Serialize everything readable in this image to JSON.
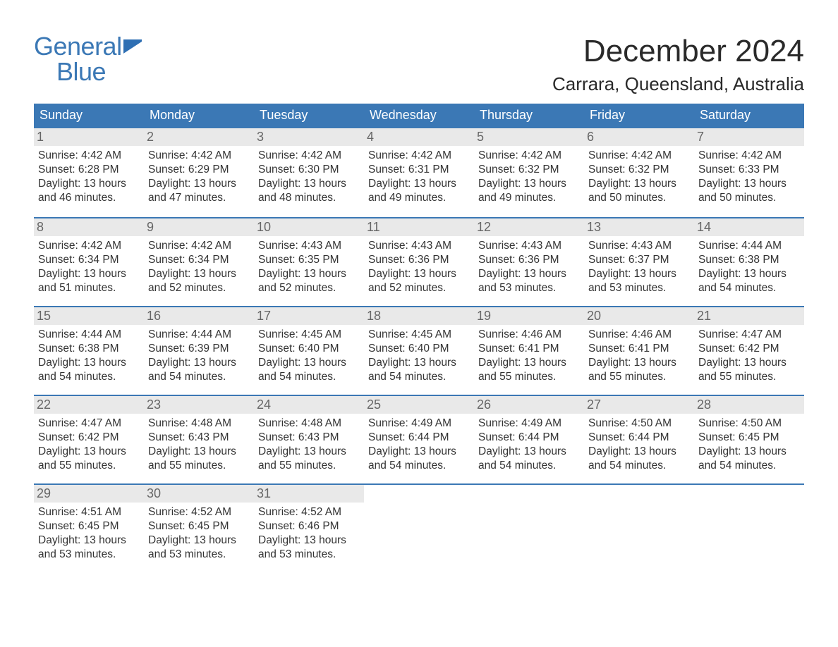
{
  "logo": {
    "line1": "General",
    "line2": "Blue",
    "brand_color": "#3b78b5"
  },
  "title": "December 2024",
  "location": "Carrara, Queensland, Australia",
  "colors": {
    "header_bg": "#3b78b5",
    "header_text": "#ffffff",
    "daynum_bg": "#e9e9e9",
    "daynum_text": "#666666",
    "body_text": "#333333",
    "week_divider": "#3b78b5",
    "page_bg": "#ffffff"
  },
  "days_of_week": [
    "Sunday",
    "Monday",
    "Tuesday",
    "Wednesday",
    "Thursday",
    "Friday",
    "Saturday"
  ],
  "weeks": [
    [
      {
        "n": "1",
        "sunrise": "Sunrise: 4:42 AM",
        "sunset": "Sunset: 6:28 PM",
        "daylight": "Daylight: 13 hours and 46 minutes."
      },
      {
        "n": "2",
        "sunrise": "Sunrise: 4:42 AM",
        "sunset": "Sunset: 6:29 PM",
        "daylight": "Daylight: 13 hours and 47 minutes."
      },
      {
        "n": "3",
        "sunrise": "Sunrise: 4:42 AM",
        "sunset": "Sunset: 6:30 PM",
        "daylight": "Daylight: 13 hours and 48 minutes."
      },
      {
        "n": "4",
        "sunrise": "Sunrise: 4:42 AM",
        "sunset": "Sunset: 6:31 PM",
        "daylight": "Daylight: 13 hours and 49 minutes."
      },
      {
        "n": "5",
        "sunrise": "Sunrise: 4:42 AM",
        "sunset": "Sunset: 6:32 PM",
        "daylight": "Daylight: 13 hours and 49 minutes."
      },
      {
        "n": "6",
        "sunrise": "Sunrise: 4:42 AM",
        "sunset": "Sunset: 6:32 PM",
        "daylight": "Daylight: 13 hours and 50 minutes."
      },
      {
        "n": "7",
        "sunrise": "Sunrise: 4:42 AM",
        "sunset": "Sunset: 6:33 PM",
        "daylight": "Daylight: 13 hours and 50 minutes."
      }
    ],
    [
      {
        "n": "8",
        "sunrise": "Sunrise: 4:42 AM",
        "sunset": "Sunset: 6:34 PM",
        "daylight": "Daylight: 13 hours and 51 minutes."
      },
      {
        "n": "9",
        "sunrise": "Sunrise: 4:42 AM",
        "sunset": "Sunset: 6:34 PM",
        "daylight": "Daylight: 13 hours and 52 minutes."
      },
      {
        "n": "10",
        "sunrise": "Sunrise: 4:43 AM",
        "sunset": "Sunset: 6:35 PM",
        "daylight": "Daylight: 13 hours and 52 minutes."
      },
      {
        "n": "11",
        "sunrise": "Sunrise: 4:43 AM",
        "sunset": "Sunset: 6:36 PM",
        "daylight": "Daylight: 13 hours and 52 minutes."
      },
      {
        "n": "12",
        "sunrise": "Sunrise: 4:43 AM",
        "sunset": "Sunset: 6:36 PM",
        "daylight": "Daylight: 13 hours and 53 minutes."
      },
      {
        "n": "13",
        "sunrise": "Sunrise: 4:43 AM",
        "sunset": "Sunset: 6:37 PM",
        "daylight": "Daylight: 13 hours and 53 minutes."
      },
      {
        "n": "14",
        "sunrise": "Sunrise: 4:44 AM",
        "sunset": "Sunset: 6:38 PM",
        "daylight": "Daylight: 13 hours and 54 minutes."
      }
    ],
    [
      {
        "n": "15",
        "sunrise": "Sunrise: 4:44 AM",
        "sunset": "Sunset: 6:38 PM",
        "daylight": "Daylight: 13 hours and 54 minutes."
      },
      {
        "n": "16",
        "sunrise": "Sunrise: 4:44 AM",
        "sunset": "Sunset: 6:39 PM",
        "daylight": "Daylight: 13 hours and 54 minutes."
      },
      {
        "n": "17",
        "sunrise": "Sunrise: 4:45 AM",
        "sunset": "Sunset: 6:40 PM",
        "daylight": "Daylight: 13 hours and 54 minutes."
      },
      {
        "n": "18",
        "sunrise": "Sunrise: 4:45 AM",
        "sunset": "Sunset: 6:40 PM",
        "daylight": "Daylight: 13 hours and 54 minutes."
      },
      {
        "n": "19",
        "sunrise": "Sunrise: 4:46 AM",
        "sunset": "Sunset: 6:41 PM",
        "daylight": "Daylight: 13 hours and 55 minutes."
      },
      {
        "n": "20",
        "sunrise": "Sunrise: 4:46 AM",
        "sunset": "Sunset: 6:41 PM",
        "daylight": "Daylight: 13 hours and 55 minutes."
      },
      {
        "n": "21",
        "sunrise": "Sunrise: 4:47 AM",
        "sunset": "Sunset: 6:42 PM",
        "daylight": "Daylight: 13 hours and 55 minutes."
      }
    ],
    [
      {
        "n": "22",
        "sunrise": "Sunrise: 4:47 AM",
        "sunset": "Sunset: 6:42 PM",
        "daylight": "Daylight: 13 hours and 55 minutes."
      },
      {
        "n": "23",
        "sunrise": "Sunrise: 4:48 AM",
        "sunset": "Sunset: 6:43 PM",
        "daylight": "Daylight: 13 hours and 55 minutes."
      },
      {
        "n": "24",
        "sunrise": "Sunrise: 4:48 AM",
        "sunset": "Sunset: 6:43 PM",
        "daylight": "Daylight: 13 hours and 55 minutes."
      },
      {
        "n": "25",
        "sunrise": "Sunrise: 4:49 AM",
        "sunset": "Sunset: 6:44 PM",
        "daylight": "Daylight: 13 hours and 54 minutes."
      },
      {
        "n": "26",
        "sunrise": "Sunrise: 4:49 AM",
        "sunset": "Sunset: 6:44 PM",
        "daylight": "Daylight: 13 hours and 54 minutes."
      },
      {
        "n": "27",
        "sunrise": "Sunrise: 4:50 AM",
        "sunset": "Sunset: 6:44 PM",
        "daylight": "Daylight: 13 hours and 54 minutes."
      },
      {
        "n": "28",
        "sunrise": "Sunrise: 4:50 AM",
        "sunset": "Sunset: 6:45 PM",
        "daylight": "Daylight: 13 hours and 54 minutes."
      }
    ],
    [
      {
        "n": "29",
        "sunrise": "Sunrise: 4:51 AM",
        "sunset": "Sunset: 6:45 PM",
        "daylight": "Daylight: 13 hours and 53 minutes."
      },
      {
        "n": "30",
        "sunrise": "Sunrise: 4:52 AM",
        "sunset": "Sunset: 6:45 PM",
        "daylight": "Daylight: 13 hours and 53 minutes."
      },
      {
        "n": "31",
        "sunrise": "Sunrise: 4:52 AM",
        "sunset": "Sunset: 6:46 PM",
        "daylight": "Daylight: 13 hours and 53 minutes."
      },
      null,
      null,
      null,
      null
    ]
  ]
}
